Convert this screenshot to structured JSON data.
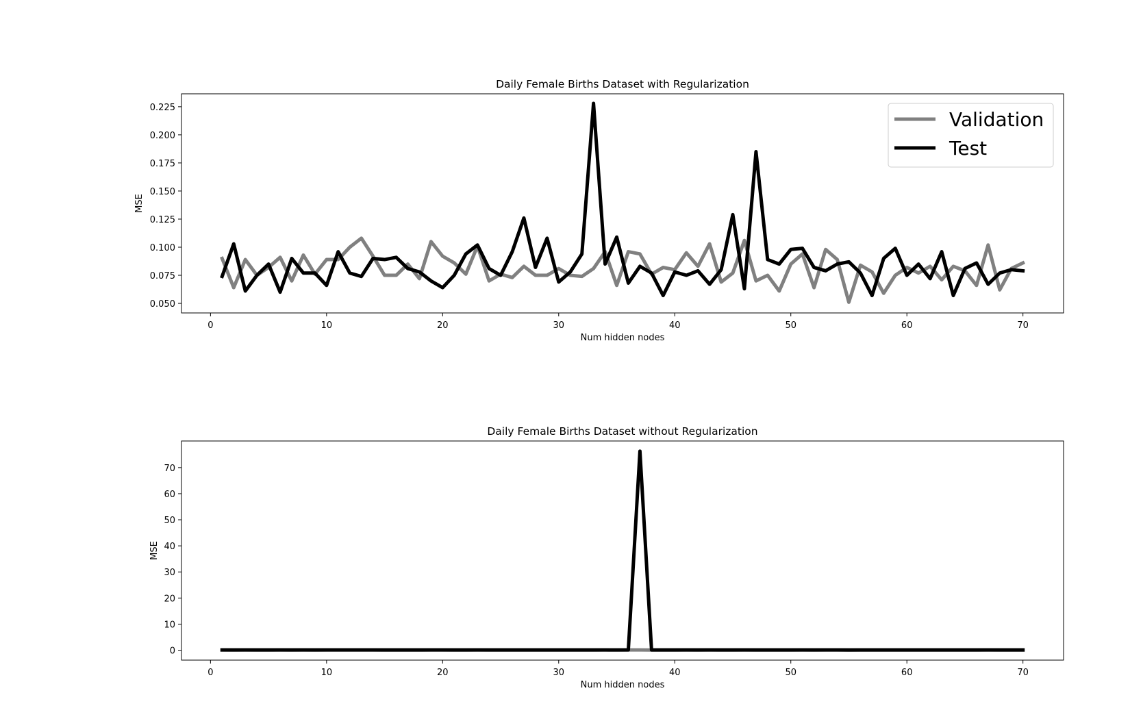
{
  "chart_data": [
    {
      "type": "line",
      "title": "Daily Female Births Dataset with Regularization",
      "xlabel": "Num hidden nodes",
      "ylabel": "MSE",
      "xlim": [
        -2.5,
        73.5
      ],
      "ylim": [
        0.0415,
        0.2365
      ],
      "xticks": [
        0,
        10,
        20,
        30,
        40,
        50,
        60,
        70
      ],
      "yticks": [
        0.05,
        0.075,
        0.1,
        0.125,
        0.15,
        0.175,
        0.2,
        0.225
      ],
      "ytick_labels": [
        "0.050",
        "0.075",
        "0.100",
        "0.125",
        "0.150",
        "0.175",
        "0.200",
        "0.225"
      ],
      "grid": false,
      "legend": {
        "position": "top-right",
        "entries": [
          "Validation",
          "Test"
        ]
      },
      "colors": {
        "Validation": "#808080",
        "Test": "#000000"
      },
      "x_start": 1,
      "series": [
        {
          "name": "Validation",
          "values": [
            0.09,
            0.064,
            0.089,
            0.075,
            0.082,
            0.091,
            0.07,
            0.093,
            0.076,
            0.089,
            0.089,
            0.1,
            0.108,
            0.092,
            0.075,
            0.075,
            0.085,
            0.072,
            0.105,
            0.092,
            0.086,
            0.076,
            0.101,
            0.07,
            0.076,
            0.073,
            0.083,
            0.075,
            0.075,
            0.081,
            0.075,
            0.074,
            0.081,
            0.096,
            0.066,
            0.096,
            0.094,
            0.076,
            0.082,
            0.08,
            0.095,
            0.083,
            0.103,
            0.069,
            0.077,
            0.106,
            0.07,
            0.075,
            0.061,
            0.085,
            0.094,
            0.064,
            0.098,
            0.089,
            0.051,
            0.084,
            0.078,
            0.059,
            0.075,
            0.082,
            0.077,
            0.083,
            0.071,
            0.083,
            0.079,
            0.066,
            0.102,
            0.062,
            0.081,
            0.086
          ]
        },
        {
          "name": "Test",
          "values": [
            0.074,
            0.103,
            0.061,
            0.075,
            0.085,
            0.06,
            0.09,
            0.077,
            0.077,
            0.066,
            0.096,
            0.077,
            0.074,
            0.09,
            0.089,
            0.091,
            0.081,
            0.078,
            0.07,
            0.064,
            0.075,
            0.094,
            0.102,
            0.081,
            0.075,
            0.096,
            0.126,
            0.082,
            0.108,
            0.069,
            0.078,
            0.094,
            0.228,
            0.085,
            0.109,
            0.068,
            0.083,
            0.077,
            0.057,
            0.078,
            0.075,
            0.079,
            0.067,
            0.08,
            0.129,
            0.063,
            0.185,
            0.089,
            0.085,
            0.098,
            0.099,
            0.082,
            0.079,
            0.085,
            0.087,
            0.077,
            0.057,
            0.09,
            0.099,
            0.075,
            0.085,
            0.072,
            0.096,
            0.057,
            0.081,
            0.086,
            0.067,
            0.077,
            0.08,
            0.079
          ]
        }
      ]
    },
    {
      "type": "line",
      "title": "Daily Female Births Dataset without Regularization",
      "xlabel": "Num hidden nodes",
      "ylabel": "MSE",
      "xlim": [
        -2.5,
        73.5
      ],
      "ylim": [
        -3.8,
        80.2
      ],
      "xticks": [
        0,
        10,
        20,
        30,
        40,
        50,
        60,
        70
      ],
      "yticks": [
        0,
        10,
        20,
        30,
        40,
        50,
        60,
        70
      ],
      "ytick_labels": [
        "0",
        "10",
        "20",
        "30",
        "40",
        "50",
        "60",
        "70"
      ],
      "grid": false,
      "colors": {
        "Validation": "#808080",
        "Test": "#000000"
      },
      "x_start": 1,
      "series": [
        {
          "name": "Validation",
          "values": [
            0.09,
            0.064,
            0.089,
            0.075,
            0.082,
            0.091,
            0.07,
            0.093,
            0.076,
            0.089,
            0.089,
            0.1,
            0.108,
            0.092,
            0.075,
            0.075,
            0.085,
            0.072,
            0.105,
            0.092,
            0.086,
            0.076,
            0.101,
            0.07,
            0.076,
            0.073,
            0.083,
            0.075,
            0.075,
            0.081,
            0.075,
            0.074,
            0.081,
            0.096,
            0.066,
            0.096,
            0.094,
            0.076,
            0.082,
            0.08,
            0.095,
            0.083,
            0.103,
            0.069,
            0.077,
            0.106,
            0.07,
            0.075,
            0.061,
            0.085,
            0.094,
            0.064,
            0.098,
            0.089,
            0.051,
            0.084,
            0.078,
            0.059,
            0.075,
            0.082,
            0.077,
            0.083,
            0.071,
            0.083,
            0.079,
            0.066,
            0.102,
            0.062,
            0.081,
            0.086
          ]
        },
        {
          "name": "Test",
          "values": [
            0.1,
            0.1,
            0.1,
            0.1,
            0.1,
            0.1,
            0.1,
            0.1,
            0.1,
            0.1,
            0.1,
            0.1,
            0.1,
            0.1,
            0.1,
            0.1,
            0.1,
            0.1,
            0.1,
            0.1,
            0.1,
            0.1,
            0.1,
            0.1,
            0.1,
            0.1,
            0.1,
            0.1,
            0.1,
            0.1,
            0.1,
            0.1,
            0.1,
            0.1,
            0.1,
            0.1,
            76.3,
            0.1,
            0.1,
            0.1,
            0.1,
            0.1,
            0.1,
            0.1,
            0.1,
            0.1,
            0.1,
            0.1,
            0.1,
            0.1,
            0.1,
            0.1,
            0.1,
            0.1,
            0.1,
            0.1,
            0.1,
            0.1,
            0.1,
            0.1,
            0.1,
            0.1,
            0.1,
            0.1,
            0.1,
            0.1,
            0.1,
            0.1,
            0.1,
            0.1
          ]
        }
      ]
    }
  ]
}
